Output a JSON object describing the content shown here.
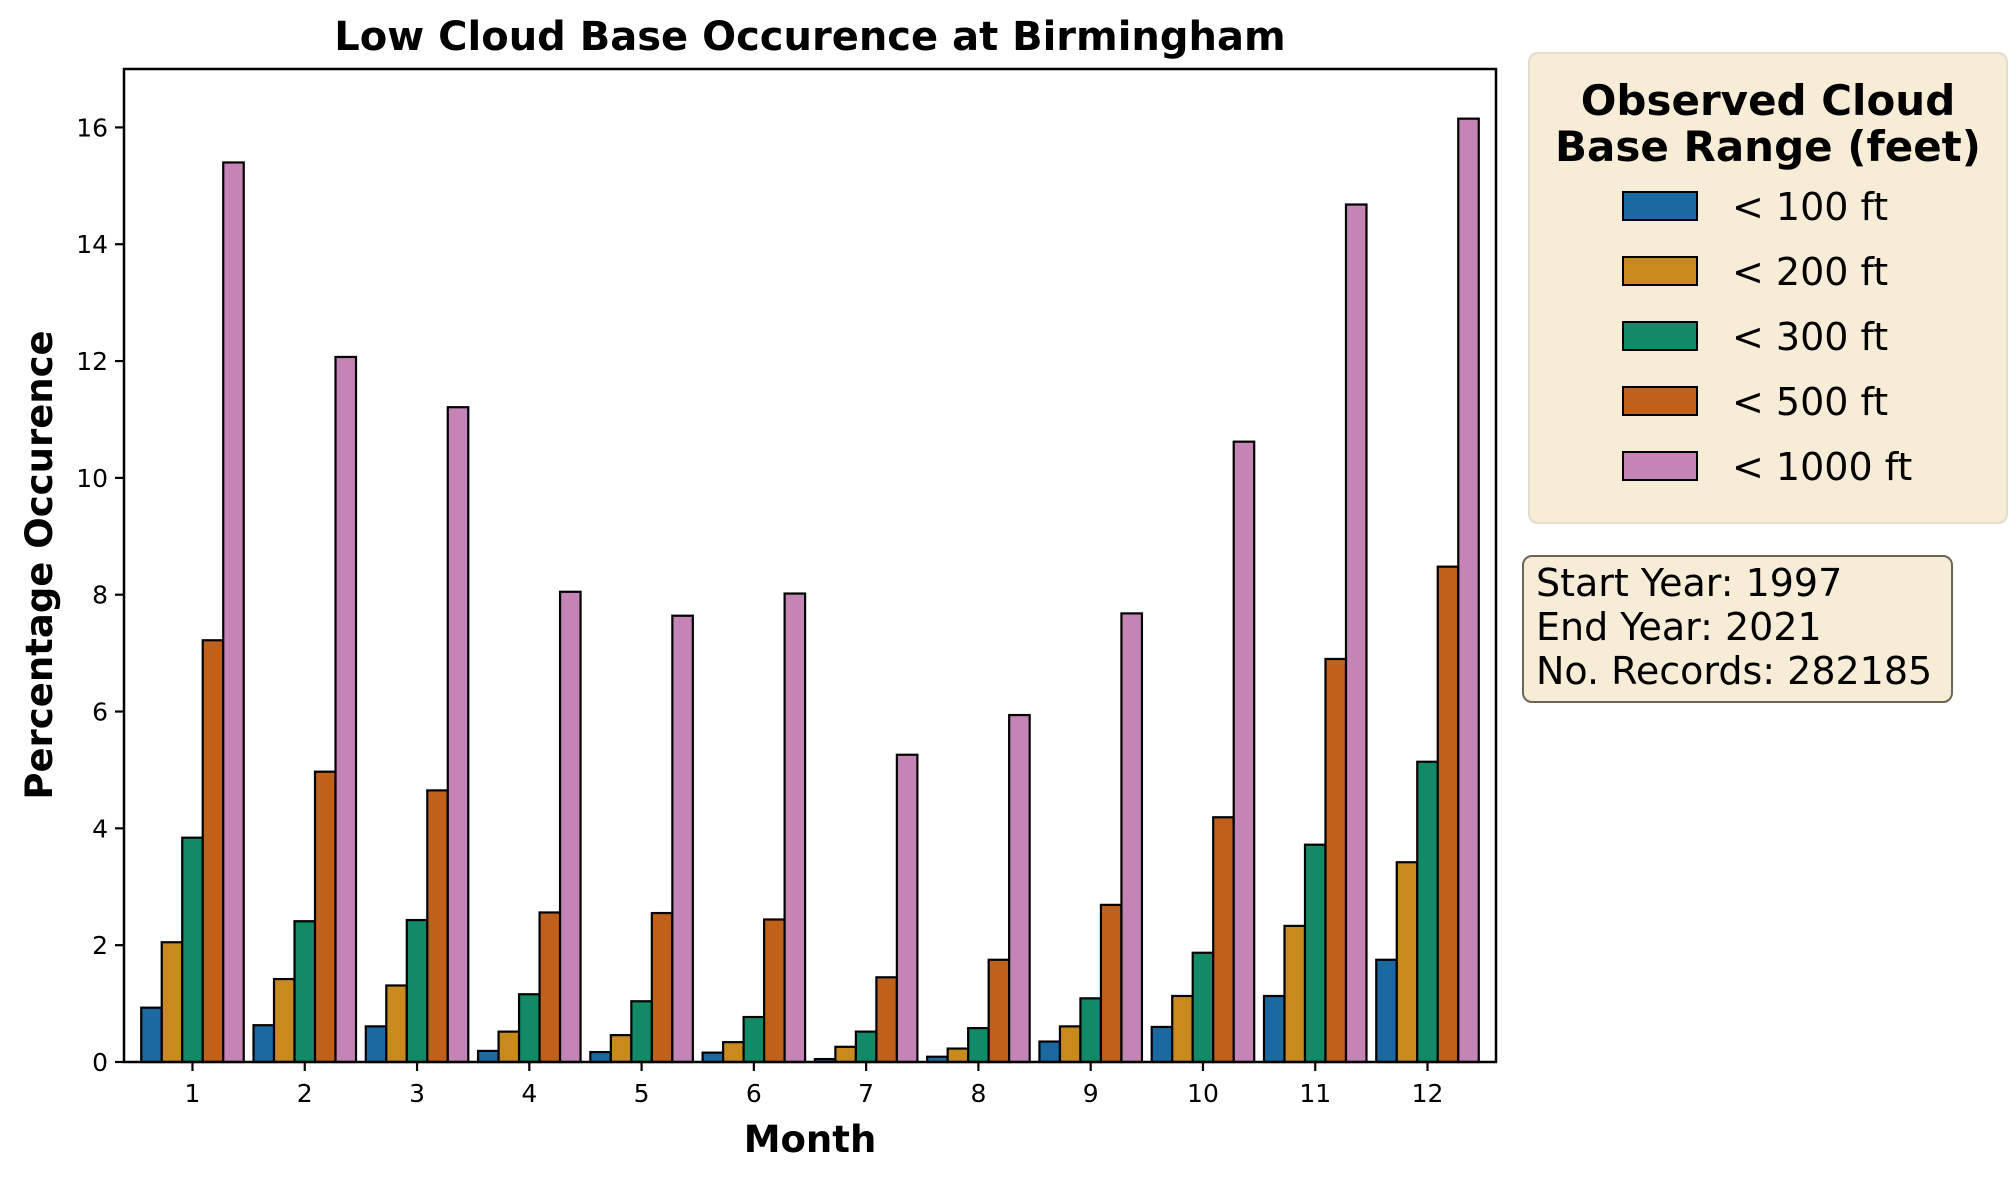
{
  "chart_data": {
    "type": "bar",
    "title": "Low Cloud Base Occurence at Birmingham",
    "xlabel": "Month",
    "ylabel": "Percentage Occurence",
    "categories": [
      "1",
      "2",
      "3",
      "4",
      "5",
      "6",
      "7",
      "8",
      "9",
      "10",
      "11",
      "12"
    ],
    "ylim": [
      0,
      17
    ],
    "yticks": [
      0,
      2,
      4,
      6,
      8,
      10,
      12,
      14,
      16
    ],
    "grid": false,
    "legend_position": "outside-right-top",
    "legend_title": "Observed Cloud Base Range (feet)",
    "series": [
      {
        "name": "< 100 ft",
        "color": "#1a6aa1",
        "values": [
          0.93,
          0.63,
          0.61,
          0.19,
          0.17,
          0.16,
          0.05,
          0.09,
          0.35,
          0.6,
          1.13,
          1.75
        ]
      },
      {
        "name": "< 200 ft",
        "color": "#c88a1e",
        "values": [
          2.05,
          1.42,
          1.31,
          0.52,
          0.46,
          0.34,
          0.26,
          0.23,
          0.61,
          1.13,
          2.33,
          3.42
        ]
      },
      {
        "name": "< 300 ft",
        "color": "#138a67",
        "values": [
          3.84,
          2.41,
          2.43,
          1.16,
          1.04,
          0.77,
          0.52,
          0.58,
          1.09,
          1.87,
          3.72,
          5.14
        ]
      },
      {
        "name": "< 500 ft",
        "color": "#c0611b",
        "values": [
          7.22,
          4.97,
          4.65,
          2.56,
          2.55,
          2.44,
          1.45,
          1.75,
          2.69,
          4.19,
          6.9,
          8.48
        ]
      },
      {
        "name": "< 1000 ft",
        "color": "#c484b6",
        "values": [
          15.4,
          12.07,
          11.21,
          8.05,
          7.64,
          8.02,
          5.26,
          5.94,
          7.68,
          10.62,
          14.68,
          16.15
        ]
      }
    ]
  },
  "info": {
    "start_year": "Start Year: 1997",
    "end_year": "End Year: 2021",
    "records": "No. Records: 282185"
  }
}
